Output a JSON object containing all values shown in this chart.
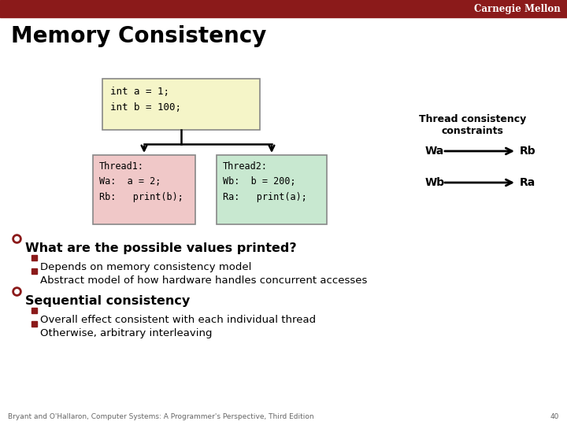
{
  "title": "Memory Consistency",
  "bg_color": "#ffffff",
  "header_bar_color": "#8B1A1A",
  "header_text": "Carnegie Mellon",
  "header_text_color": "#ffffff",
  "title_color": "#000000",
  "title_fontsize": 20,
  "box_top_text": "int a = 1;\nint b = 100;",
  "box_top_bg": "#f5f5c8",
  "box_top_border": "#888888",
  "box_left_text": "Thread1:\nWa:  a = 2;\nRb:   print(b);",
  "box_left_bg": "#f0c8c8",
  "box_left_border": "#888888",
  "box_right_text": "Thread2:\nWb:  b = 200;\nRa:   print(a);",
  "box_right_bg": "#c8e8d0",
  "box_right_border": "#888888",
  "constraints_title": "Thread consistency\nconstraints",
  "constraints_title_color": "#000000",
  "constraint1_left": "Wa",
  "constraint1_right": "Rb",
  "constraint2_left": "Wb",
  "constraint2_right": "Ra",
  "bullet1_header": "What are the possible values printed?",
  "bullet1_sub1": "Depends on memory consistency model",
  "bullet1_sub2": "Abstract model of how hardware handles concurrent accesses",
  "bullet2_header": "Sequential consistency",
  "bullet2_sub1": "Overall effect consistent with each individual thread",
  "bullet2_sub2": "Otherwise, arbitrary interleaving",
  "footer_text": "Bryant and O'Hallaron, Computer Systems: A Programmer's Perspective, Third Edition",
  "footer_page": "40",
  "circle_bullet_color": "#8B1A1A",
  "square_bullet_color": "#8B1A1A",
  "text_color": "#000000",
  "line_color": "#000000"
}
